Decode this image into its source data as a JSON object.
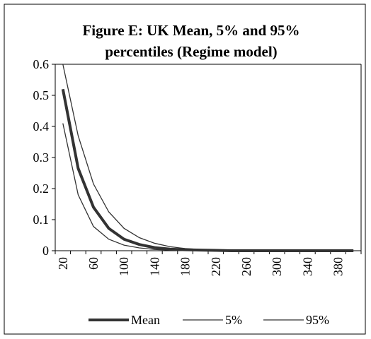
{
  "chart_data": {
    "type": "line",
    "title": "Figure E: UK Mean, 5%  and 95% percentiles (Regime model)",
    "categories": [
      "20",
      null,
      "60",
      null,
      "100",
      null,
      "140",
      null,
      "180",
      null,
      "220",
      null,
      "260",
      null,
      "300",
      null,
      "340",
      null,
      "380",
      null
    ],
    "series": [
      {
        "name": "Mean",
        "color": "#333333",
        "width": 4,
        "values": [
          0.52,
          0.265,
          0.14,
          0.072,
          0.037,
          0.02,
          0.01,
          0.005,
          0.003,
          0.002,
          0.001,
          0,
          0,
          0,
          0,
          0,
          0,
          0,
          0,
          0
        ]
      },
      {
        "name": "5%",
        "color": "#333333",
        "width": 1.3,
        "values": [
          0.41,
          0.18,
          0.078,
          0.037,
          0.018,
          0.009,
          0.004,
          0.002,
          0.001,
          0.001,
          0,
          0,
          0,
          0,
          0,
          0,
          0,
          0,
          0,
          0
        ]
      },
      {
        "name": "95%",
        "color": "#333333",
        "width": 1.3,
        "values": [
          0.6,
          0.37,
          0.215,
          0.125,
          0.072,
          0.042,
          0.024,
          0.013,
          0.007,
          0.004,
          0.002,
          0.001,
          0,
          0,
          0,
          0,
          0,
          0,
          0,
          0
        ]
      }
    ],
    "ylim": [
      0,
      0.6
    ],
    "yticks": [
      0,
      0.1,
      0.2,
      0.3,
      0.4,
      0.5,
      0.6
    ],
    "grid": false,
    "legend": "bottom"
  }
}
